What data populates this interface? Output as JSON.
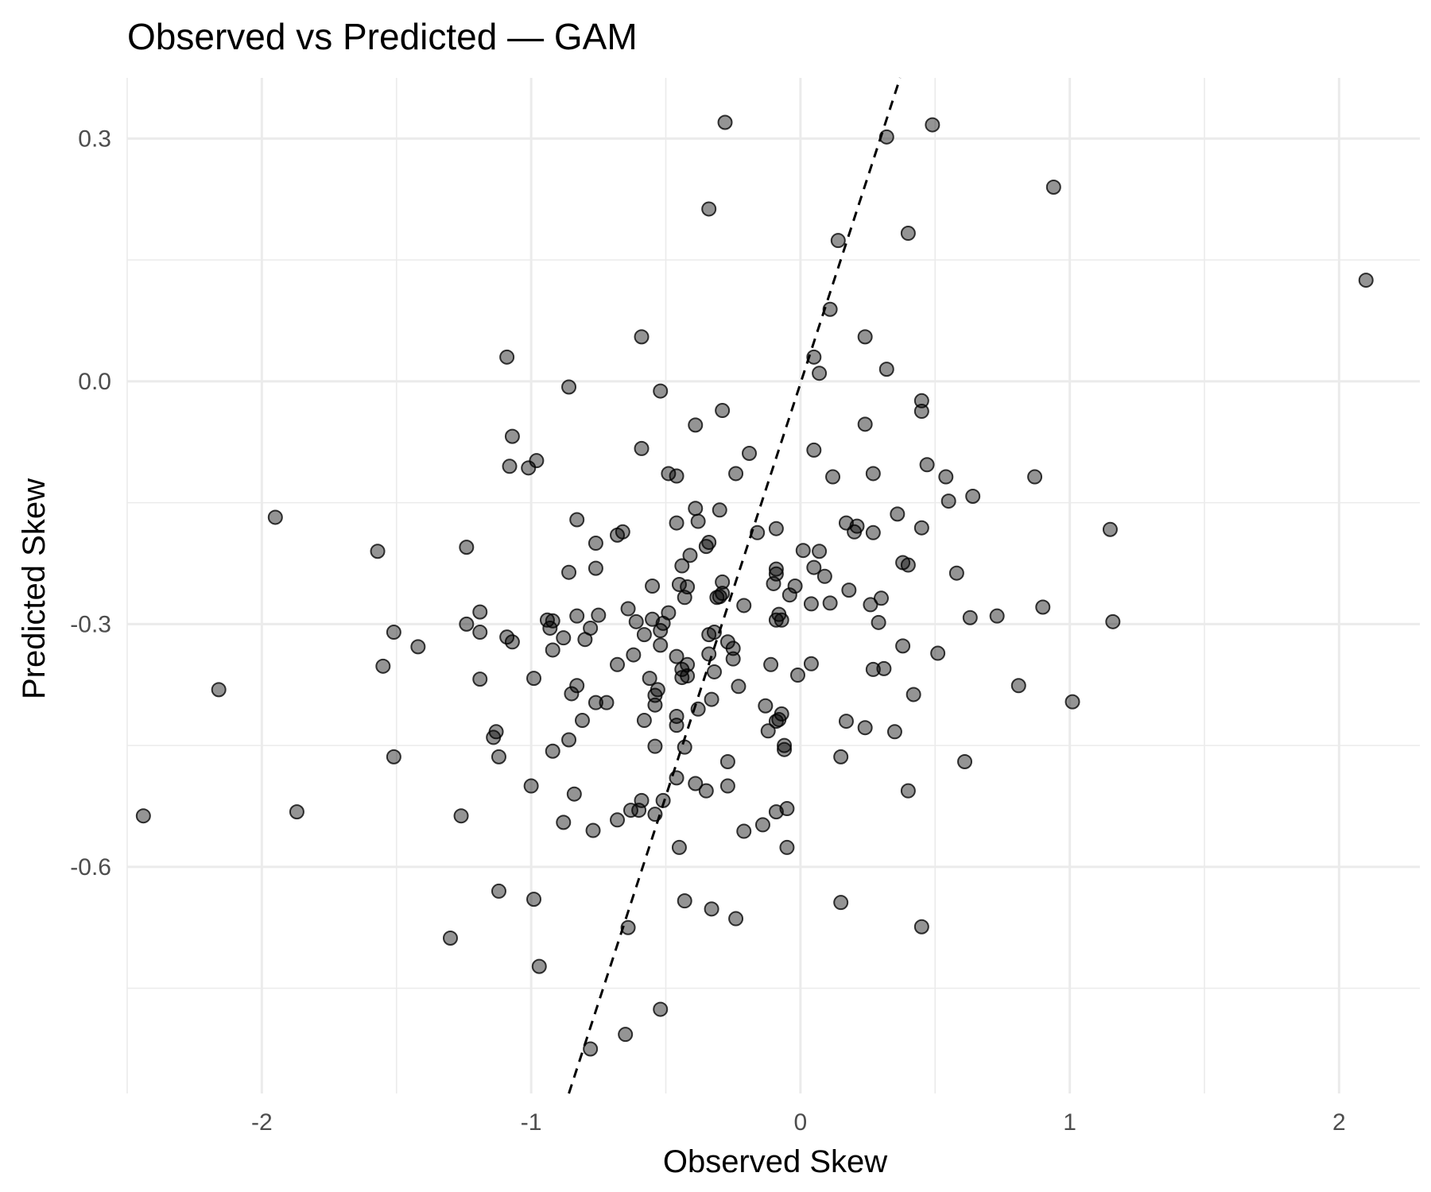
{
  "chart_data": {
    "type": "scatter",
    "title": "Observed vs Predicted — GAM",
    "xlabel": "Observed Skew",
    "ylabel": "Predicted Skew",
    "xlim": [
      -2.5,
      2.3
    ],
    "ylim": [
      -0.88,
      0.375
    ],
    "x_ticks": [
      -2,
      -1,
      0,
      1,
      2
    ],
    "x_tick_labels": [
      "-2",
      "-1",
      "0",
      "1",
      "2"
    ],
    "y_ticks": [
      -0.6,
      -0.3,
      0.0,
      0.3
    ],
    "y_tick_labels": [
      "-0.6",
      "-0.3",
      "0.0",
      "0.3"
    ],
    "grid": true,
    "reference_line": {
      "style": "dashed",
      "color": "#000000",
      "points": [
        [
          -0.86,
          -0.88
        ],
        [
          0.37,
          0.375
        ]
      ]
    },
    "points": [
      [
        -0.28,
        0.32
      ],
      [
        0.49,
        0.317
      ],
      [
        0.32,
        0.302
      ],
      [
        0.94,
        0.24
      ],
      [
        -0.34,
        0.213
      ],
      [
        0.4,
        0.183
      ],
      [
        0.14,
        0.174
      ],
      [
        2.1,
        0.125
      ],
      [
        0.11,
        0.089
      ],
      [
        -0.59,
        0.055
      ],
      [
        0.24,
        0.055
      ],
      [
        -1.09,
        0.03
      ],
      [
        0.05,
        0.03
      ],
      [
        0.32,
        0.015
      ],
      [
        0.07,
        0.01
      ],
      [
        -0.86,
        -0.007
      ],
      [
        -0.52,
        -0.012
      ],
      [
        0.45,
        -0.024
      ],
      [
        -0.29,
        -0.036
      ],
      [
        0.45,
        -0.037
      ],
      [
        -0.39,
        -0.054
      ],
      [
        0.24,
        -0.053
      ],
      [
        -1.07,
        -0.068
      ],
      [
        -0.59,
        -0.083
      ],
      [
        0.05,
        -0.085
      ],
      [
        -0.19,
        -0.089
      ],
      [
        -0.98,
        -0.098
      ],
      [
        -1.08,
        -0.105
      ],
      [
        -1.01,
        -0.107
      ],
      [
        0.47,
        -0.103
      ],
      [
        -0.49,
        -0.114
      ],
      [
        -0.46,
        -0.117
      ],
      [
        -0.24,
        -0.114
      ],
      [
        0.12,
        -0.118
      ],
      [
        0.27,
        -0.114
      ],
      [
        0.54,
        -0.118
      ],
      [
        0.87,
        -0.118
      ],
      [
        0.64,
        -0.142
      ],
      [
        0.55,
        -0.148
      ],
      [
        -1.95,
        -0.168
      ],
      [
        -0.39,
        -0.157
      ],
      [
        -0.3,
        -0.159
      ],
      [
        0.36,
        -0.164
      ],
      [
        -0.83,
        -0.171
      ],
      [
        -0.46,
        -0.175
      ],
      [
        -0.38,
        -0.173
      ],
      [
        0.17,
        -0.175
      ],
      [
        -0.09,
        -0.182
      ],
      [
        0.21,
        -0.179
      ],
      [
        0.45,
        -0.181
      ],
      [
        -0.66,
        -0.186
      ],
      [
        -0.68,
        -0.19
      ],
      [
        -0.16,
        -0.187
      ],
      [
        0.2,
        -0.186
      ],
      [
        0.27,
        -0.187
      ],
      [
        1.15,
        -0.183
      ],
      [
        -0.34,
        -0.199
      ],
      [
        -0.76,
        -0.2
      ],
      [
        -0.35,
        -0.204
      ],
      [
        -1.24,
        -0.205
      ],
      [
        -1.57,
        -0.21
      ],
      [
        0.01,
        -0.209
      ],
      [
        0.07,
        -0.21
      ],
      [
        -0.41,
        -0.215
      ],
      [
        0.38,
        -0.224
      ],
      [
        -0.44,
        -0.228
      ],
      [
        0.4,
        -0.227
      ],
      [
        -0.76,
        -0.231
      ],
      [
        -0.09,
        -0.232
      ],
      [
        0.05,
        -0.23
      ],
      [
        -0.86,
        -0.236
      ],
      [
        0.58,
        -0.237
      ],
      [
        -0.09,
        -0.238
      ],
      [
        0.09,
        -0.241
      ],
      [
        -0.29,
        -0.248
      ],
      [
        -0.45,
        -0.251
      ],
      [
        -0.1,
        -0.25
      ],
      [
        -0.55,
        -0.253
      ],
      [
        -0.42,
        -0.254
      ],
      [
        -0.02,
        -0.253
      ],
      [
        0.18,
        -0.258
      ],
      [
        -0.29,
        -0.262
      ],
      [
        -0.43,
        -0.267
      ],
      [
        -0.31,
        -0.267
      ],
      [
        -0.3,
        -0.266
      ],
      [
        -0.04,
        -0.264
      ],
      [
        0.3,
        -0.268
      ],
      [
        0.04,
        -0.275
      ],
      [
        0.11,
        -0.274
      ],
      [
        0.26,
        -0.276
      ],
      [
        -0.21,
        -0.277
      ],
      [
        -0.64,
        -0.281
      ],
      [
        0.9,
        -0.279
      ],
      [
        -1.19,
        -0.285
      ],
      [
        -0.49,
        -0.286
      ],
      [
        -0.83,
        -0.29
      ],
      [
        -0.75,
        -0.289
      ],
      [
        -0.08,
        -0.288
      ],
      [
        -0.55,
        -0.294
      ],
      [
        -0.94,
        -0.295
      ],
      [
        -0.92,
        -0.296
      ],
      [
        -0.61,
        -0.297
      ],
      [
        -0.51,
        -0.299
      ],
      [
        -0.09,
        -0.295
      ],
      [
        -0.07,
        -0.295
      ],
      [
        0.63,
        -0.292
      ],
      [
        0.73,
        -0.29
      ],
      [
        1.16,
        -0.297
      ],
      [
        -1.24,
        -0.3
      ],
      [
        0.29,
        -0.298
      ],
      [
        -0.93,
        -0.305
      ],
      [
        -0.78,
        -0.305
      ],
      [
        -0.52,
        -0.308
      ],
      [
        -0.32,
        -0.31
      ],
      [
        -1.51,
        -0.31
      ],
      [
        -1.19,
        -0.31
      ],
      [
        -0.58,
        -0.313
      ],
      [
        -0.34,
        -0.313
      ],
      [
        -1.09,
        -0.316
      ],
      [
        -0.88,
        -0.317
      ],
      [
        -0.8,
        -0.319
      ],
      [
        -1.07,
        -0.322
      ],
      [
        -0.27,
        -0.322
      ],
      [
        -0.52,
        -0.326
      ],
      [
        0.38,
        -0.327
      ],
      [
        -1.42,
        -0.328
      ],
      [
        -0.25,
        -0.33
      ],
      [
        -0.92,
        -0.332
      ],
      [
        0.51,
        -0.336
      ],
      [
        -0.34,
        -0.337
      ],
      [
        -0.62,
        -0.338
      ],
      [
        -0.46,
        -0.34
      ],
      [
        -0.25,
        -0.343
      ],
      [
        -1.55,
        -0.352
      ],
      [
        -0.68,
        -0.35
      ],
      [
        -0.42,
        -0.35
      ],
      [
        -0.11,
        -0.35
      ],
      [
        0.04,
        -0.349
      ],
      [
        -0.44,
        -0.356
      ],
      [
        0.31,
        -0.355
      ],
      [
        0.27,
        -0.356
      ],
      [
        -0.32,
        -0.359
      ],
      [
        -0.01,
        -0.363
      ],
      [
        -0.42,
        -0.364
      ],
      [
        -0.44,
        -0.366
      ],
      [
        -1.19,
        -0.368
      ],
      [
        -0.99,
        -0.367
      ],
      [
        -0.56,
        -0.367
      ],
      [
        -0.83,
        -0.376
      ],
      [
        -0.23,
        -0.377
      ],
      [
        0.81,
        -0.376
      ],
      [
        -2.16,
        -0.381
      ],
      [
        -0.53,
        -0.381
      ],
      [
        -0.85,
        -0.386
      ],
      [
        -0.54,
        -0.388
      ],
      [
        0.42,
        -0.387
      ],
      [
        -0.33,
        -0.393
      ],
      [
        -0.72,
        -0.397
      ],
      [
        -0.76,
        -0.397
      ],
      [
        -0.54,
        -0.4
      ],
      [
        1.01,
        -0.396
      ],
      [
        -0.13,
        -0.401
      ],
      [
        -0.38,
        -0.405
      ],
      [
        -0.07,
        -0.411
      ],
      [
        -0.46,
        -0.414
      ],
      [
        -0.81,
        -0.419
      ],
      [
        -0.08,
        -0.418
      ],
      [
        -0.58,
        -0.419
      ],
      [
        -0.09,
        -0.42
      ],
      [
        0.17,
        -0.42
      ],
      [
        -0.46,
        -0.425
      ],
      [
        0.24,
        -0.428
      ],
      [
        -0.12,
        -0.432
      ],
      [
        -1.13,
        -0.433
      ],
      [
        0.35,
        -0.433
      ],
      [
        -1.14,
        -0.44
      ],
      [
        -0.86,
        -0.443
      ],
      [
        -0.06,
        -0.45
      ],
      [
        -0.54,
        -0.451
      ],
      [
        -0.43,
        -0.452
      ],
      [
        -0.06,
        -0.455
      ],
      [
        -0.92,
        -0.457
      ],
      [
        -1.51,
        -0.464
      ],
      [
        -1.12,
        -0.464
      ],
      [
        0.15,
        -0.464
      ],
      [
        -0.27,
        -0.47
      ],
      [
        0.61,
        -0.47
      ],
      [
        -0.46,
        -0.49
      ],
      [
        -0.39,
        -0.497
      ],
      [
        -1.0,
        -0.5
      ],
      [
        -0.27,
        -0.5
      ],
      [
        -0.35,
        -0.506
      ],
      [
        0.4,
        -0.506
      ],
      [
        -0.84,
        -0.51
      ],
      [
        -0.51,
        -0.518
      ],
      [
        -0.59,
        -0.518
      ],
      [
        -0.05,
        -0.528
      ],
      [
        -0.63,
        -0.53
      ],
      [
        -0.6,
        -0.53
      ],
      [
        -1.87,
        -0.532
      ],
      [
        -0.09,
        -0.532
      ],
      [
        -0.54,
        -0.535
      ],
      [
        -2.44,
        -0.537
      ],
      [
        -1.26,
        -0.537
      ],
      [
        -0.68,
        -0.542
      ],
      [
        -0.88,
        -0.545
      ],
      [
        -0.14,
        -0.548
      ],
      [
        -0.77,
        -0.555
      ],
      [
        -0.21,
        -0.556
      ],
      [
        -0.45,
        -0.576
      ],
      [
        -0.05,
        -0.576
      ],
      [
        -1.12,
        -0.63
      ],
      [
        -0.99,
        -0.64
      ],
      [
        -0.43,
        -0.642
      ],
      [
        0.15,
        -0.644
      ],
      [
        -0.33,
        -0.652
      ],
      [
        -0.24,
        -0.664
      ],
      [
        0.45,
        -0.674
      ],
      [
        -0.64,
        -0.675
      ],
      [
        -1.3,
        -0.688
      ],
      [
        -0.97,
        -0.723
      ],
      [
        -0.52,
        -0.776
      ],
      [
        -0.65,
        -0.807
      ],
      [
        -0.78,
        -0.825
      ]
    ]
  }
}
